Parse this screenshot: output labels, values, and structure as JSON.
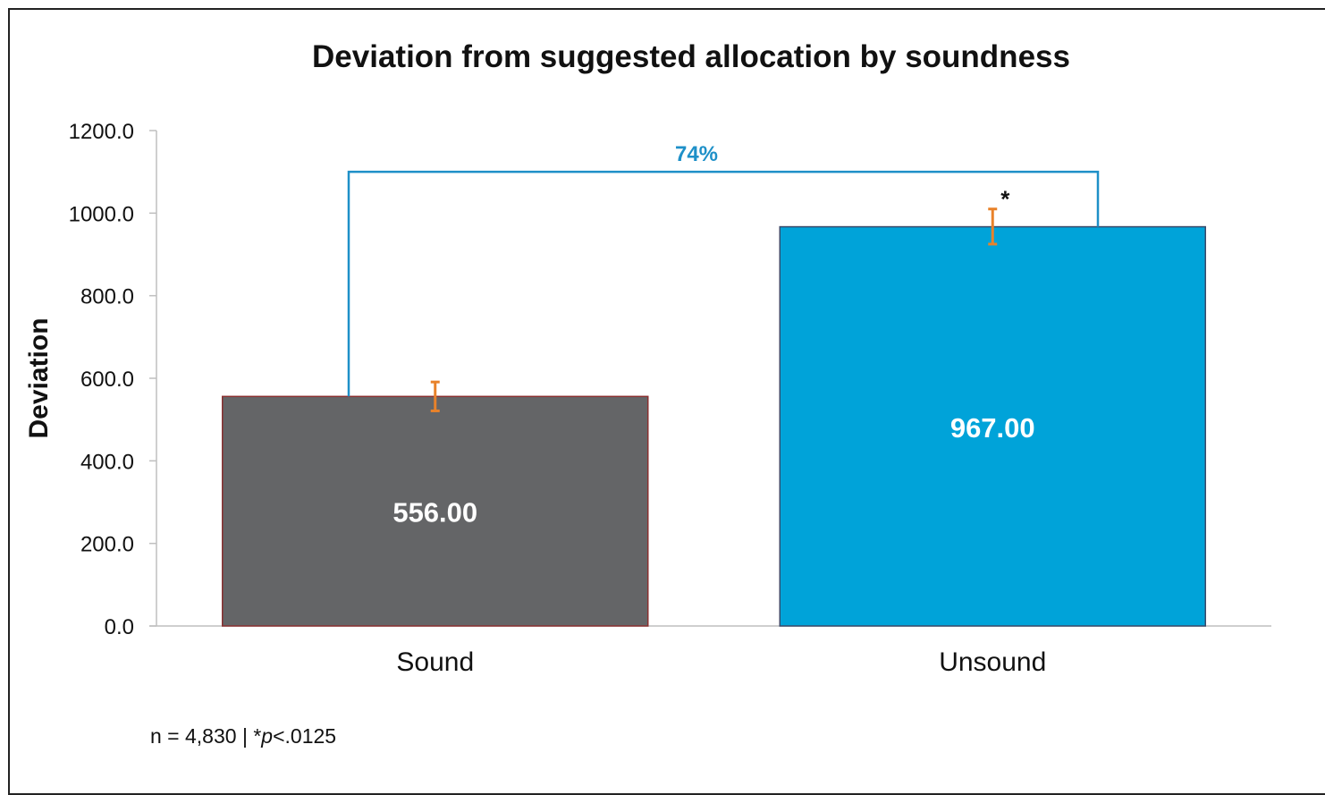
{
  "chart_data": {
    "type": "bar",
    "title": "Deviation from suggested allocation by soundness",
    "ylabel": "Deviation",
    "xlabel": "",
    "categories": [
      "Sound",
      "Unsound"
    ],
    "values": [
      556.0,
      967.0
    ],
    "value_labels": [
      "556.00",
      "967.00"
    ],
    "error_bars": [
      [
        521,
        591
      ],
      [
        925,
        1010
      ]
    ],
    "ylim": [
      0,
      1200
    ],
    "yticks": [
      0,
      200,
      400,
      600,
      800,
      1000,
      1200
    ],
    "ytick_labels": [
      "0.0",
      "200.0",
      "400.0",
      "600.0",
      "800.0",
      "1000.0",
      "1200.0"
    ],
    "bar_colors": [
      "#646567",
      "#00a3d9"
    ],
    "error_bar_color": "#e8822a",
    "bracket": {
      "label": "74%",
      "level": 1100,
      "color": "#1e90c8"
    },
    "significance_marker": "*",
    "grid": false,
    "legend": "none"
  },
  "footnote": {
    "n_text": "n = 4,830 | ",
    "star": "*",
    "p_italic": "p",
    "p_value": "<.0125"
  }
}
